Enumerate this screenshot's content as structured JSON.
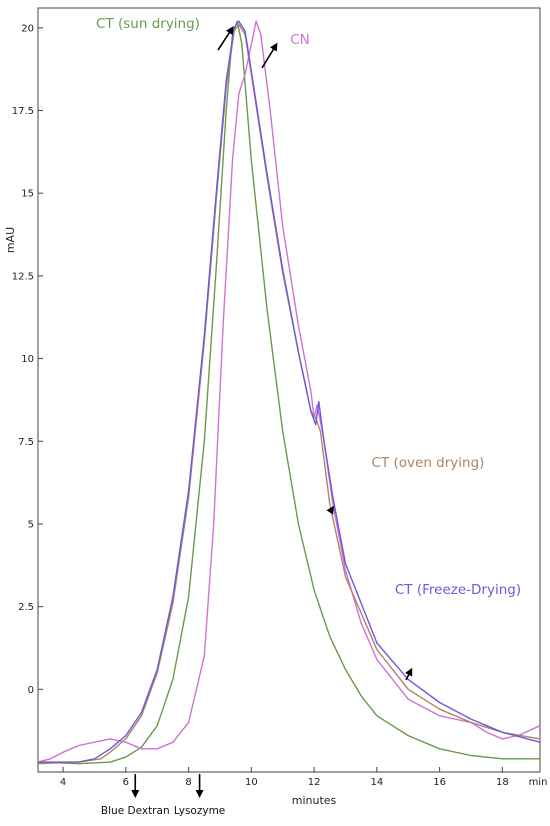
{
  "chart_data": {
    "type": "line",
    "xlabel": "minutes",
    "ylabel": "mAU",
    "x_unit_label": "min",
    "xlim": [
      3.2,
      19.2
    ],
    "ylim": [
      -2.5,
      20.6
    ],
    "x_ticks": [
      4,
      6,
      8,
      10,
      12,
      14,
      16,
      18
    ],
    "y_ticks": [
      0,
      2.5,
      5,
      7.5,
      10,
      12.5,
      15,
      17.5,
      20
    ],
    "y_tick_labels": [
      "0",
      "2.5",
      "5",
      "7.5",
      "10",
      "12.5",
      "15",
      "17.5",
      "20"
    ],
    "x_tick_labels": [
      "4",
      "6",
      "8",
      "10",
      "12",
      "14",
      "16",
      "18"
    ],
    "grid": false,
    "series": [
      {
        "name": "CT (sun drying)",
        "color": "#6a9a4a",
        "points": [
          [
            3.2,
            -2.2
          ],
          [
            4.5,
            -2.25
          ],
          [
            5.5,
            -2.2
          ],
          [
            6.0,
            -2.05
          ],
          [
            6.5,
            -1.75
          ],
          [
            7.0,
            -1.1
          ],
          [
            7.5,
            0.3
          ],
          [
            8.0,
            2.8
          ],
          [
            8.5,
            7.5
          ],
          [
            8.9,
            13.0
          ],
          [
            9.2,
            17.5
          ],
          [
            9.4,
            19.8
          ],
          [
            9.55,
            20.2
          ],
          [
            9.7,
            19.5
          ],
          [
            10.0,
            16.0
          ],
          [
            10.5,
            11.5
          ],
          [
            11.0,
            7.8
          ],
          [
            11.5,
            5.0
          ],
          [
            12.0,
            3.0
          ],
          [
            12.5,
            1.6
          ],
          [
            13.0,
            0.6
          ],
          [
            13.5,
            -0.2
          ],
          [
            14.0,
            -0.8
          ],
          [
            15.0,
            -1.4
          ],
          [
            16.0,
            -1.8
          ],
          [
            17.0,
            -2.0
          ],
          [
            18.0,
            -2.1
          ],
          [
            19.2,
            -2.1
          ]
        ]
      },
      {
        "name": "CN",
        "color": "#d070d8",
        "points": [
          [
            3.2,
            -2.2
          ],
          [
            3.6,
            -2.1
          ],
          [
            4.0,
            -1.9
          ],
          [
            4.5,
            -1.7
          ],
          [
            5.0,
            -1.6
          ],
          [
            5.5,
            -1.5
          ],
          [
            6.0,
            -1.6
          ],
          [
            6.5,
            -1.8
          ],
          [
            7.0,
            -1.8
          ],
          [
            7.5,
            -1.6
          ],
          [
            8.0,
            -1.0
          ],
          [
            8.5,
            1.0
          ],
          [
            8.8,
            5.0
          ],
          [
            9.1,
            11.0
          ],
          [
            9.4,
            16.0
          ],
          [
            9.6,
            18.0
          ],
          [
            9.8,
            18.6
          ],
          [
            10.0,
            19.5
          ],
          [
            10.15,
            20.2
          ],
          [
            10.3,
            19.8
          ],
          [
            10.6,
            17.5
          ],
          [
            11.0,
            14.0
          ],
          [
            11.5,
            11.0
          ],
          [
            11.9,
            9.0
          ],
          [
            12.0,
            8.2
          ],
          [
            12.1,
            8.6
          ],
          [
            12.3,
            7.6
          ],
          [
            12.6,
            5.6
          ],
          [
            13.0,
            3.6
          ],
          [
            13.5,
            2.0
          ],
          [
            14.0,
            0.9
          ],
          [
            15.0,
            -0.3
          ],
          [
            16.0,
            -0.8
          ],
          [
            17.0,
            -1.0
          ],
          [
            17.5,
            -1.3
          ],
          [
            18.0,
            -1.5
          ],
          [
            18.5,
            -1.4
          ],
          [
            19.2,
            -1.1
          ]
        ]
      },
      {
        "name": "CT (oven drying)",
        "color": "#b08460",
        "points": [
          [
            3.2,
            -2.25
          ],
          [
            4.5,
            -2.2
          ],
          [
            5.2,
            -2.1
          ],
          [
            5.5,
            -1.9
          ],
          [
            6.0,
            -1.5
          ],
          [
            6.5,
            -0.8
          ],
          [
            7.0,
            0.5
          ],
          [
            7.5,
            2.6
          ],
          [
            8.0,
            5.8
          ],
          [
            8.5,
            10.5
          ],
          [
            8.9,
            15.0
          ],
          [
            9.2,
            18.2
          ],
          [
            9.45,
            19.9
          ],
          [
            9.6,
            20.1
          ],
          [
            9.8,
            19.8
          ],
          [
            10.0,
            18.6
          ],
          [
            10.5,
            15.5
          ],
          [
            11.0,
            12.6
          ],
          [
            11.5,
            10.2
          ],
          [
            11.9,
            8.4
          ],
          [
            12.05,
            8.2
          ],
          [
            12.2,
            7.8
          ],
          [
            12.5,
            5.6
          ],
          [
            13.0,
            3.4
          ],
          [
            14.0,
            1.2
          ],
          [
            15.0,
            0.0
          ],
          [
            16.0,
            -0.6
          ],
          [
            17.0,
            -1.0
          ],
          [
            18.0,
            -1.3
          ],
          [
            19.2,
            -1.5
          ]
        ]
      },
      {
        "name": "CT (Freeze-Drying)",
        "color": "#6a5ae0",
        "points": [
          [
            3.2,
            -2.2
          ],
          [
            4.5,
            -2.2
          ],
          [
            5.0,
            -2.1
          ],
          [
            5.5,
            -1.8
          ],
          [
            6.0,
            -1.4
          ],
          [
            6.5,
            -0.7
          ],
          [
            7.0,
            0.6
          ],
          [
            7.5,
            2.8
          ],
          [
            8.0,
            6.0
          ],
          [
            8.5,
            10.7
          ],
          [
            8.9,
            15.2
          ],
          [
            9.2,
            18.4
          ],
          [
            9.45,
            20.0
          ],
          [
            9.6,
            20.2
          ],
          [
            9.8,
            19.9
          ],
          [
            10.0,
            18.7
          ],
          [
            10.5,
            15.6
          ],
          [
            11.0,
            12.7
          ],
          [
            11.5,
            10.2
          ],
          [
            11.9,
            8.4
          ],
          [
            12.05,
            8.0
          ],
          [
            12.15,
            8.7
          ],
          [
            12.3,
            7.6
          ],
          [
            12.6,
            5.8
          ],
          [
            13.0,
            3.8
          ],
          [
            14.0,
            1.4
          ],
          [
            15.0,
            0.3
          ],
          [
            16.0,
            -0.4
          ],
          [
            17.0,
            -0.9
          ],
          [
            18.0,
            -1.3
          ],
          [
            19.2,
            -1.6
          ]
        ]
      }
    ],
    "annotations": [
      {
        "text": "CT (sun drying)",
        "color": "#6a9a4a",
        "arrow_to": [
          9.4,
          20.0
        ]
      },
      {
        "text": "CN",
        "color": "#d070d8",
        "arrow_to": [
          10.8,
          19.5
        ]
      },
      {
        "text": "CT (oven drying)",
        "color": "#b08460",
        "arrow_to": [
          12.6,
          5.5
        ]
      },
      {
        "text": "CT (Freeze-Drying)",
        "color": "#6a5ae0",
        "arrow_to": [
          15.1,
          0.6
        ]
      }
    ],
    "markers": [
      {
        "text": "Blue Dextran",
        "x": 6.3
      },
      {
        "text": "Lysozyme",
        "x": 8.35
      }
    ]
  }
}
